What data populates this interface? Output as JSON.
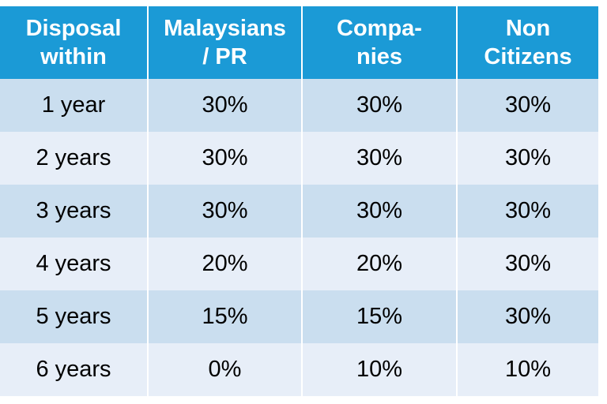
{
  "table": {
    "header": [
      [
        "Disposal",
        "within"
      ],
      [
        "Malaysians",
        "/ PR"
      ],
      [
        "Compa-",
        "nies"
      ],
      [
        "Non",
        "Citizens"
      ]
    ],
    "rows": [
      [
        "1 year",
        "30%",
        "30%",
        "30%"
      ],
      [
        "2 years",
        "30%",
        "30%",
        "30%"
      ],
      [
        "3 years",
        "30%",
        "30%",
        "30%"
      ],
      [
        "4 years",
        "20%",
        "20%",
        "30%"
      ],
      [
        "5 years",
        "15%",
        "15%",
        "30%"
      ],
      [
        "6 years",
        "0%",
        "10%",
        "10%"
      ]
    ]
  }
}
